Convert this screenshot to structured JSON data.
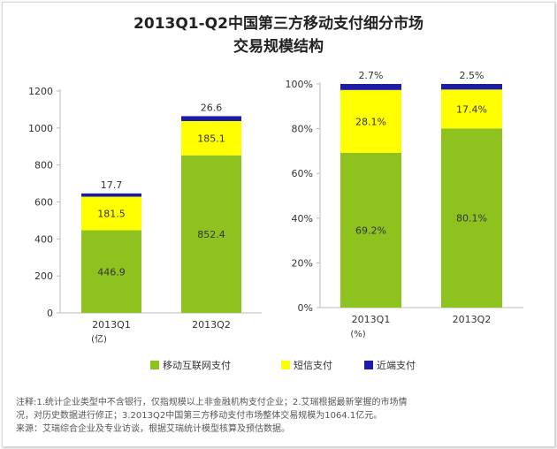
{
  "title_line1": "2013Q1-Q2中国第三方移动支付细分市场",
  "title_line2": "交易规模结构",
  "legend": [
    {
      "name": "移动互联网支付",
      "color": "#8dc21f"
    },
    {
      "name": "短信支付",
      "color": "#ffff00"
    },
    {
      "name": "近端支付",
      "color": "#1c1ca8"
    }
  ],
  "chart_data": [
    {
      "type": "bar",
      "stacked": true,
      "categories": [
        "2013Q1",
        "2013Q2"
      ],
      "series": [
        {
          "name": "移动互联网支付",
          "values": [
            446.9,
            852.4
          ]
        },
        {
          "name": "短信支付",
          "values": [
            181.5,
            185.1
          ]
        },
        {
          "name": "近端支付",
          "values": [
            17.7,
            26.6
          ]
        }
      ],
      "ylim": [
        0,
        1200
      ],
      "yticks": [
        "0",
        "200",
        "400",
        "600",
        "800",
        "1000",
        "1200"
      ],
      "unit_label": "(亿)",
      "value_labels": [
        [
          "446.9",
          "181.5",
          "17.7"
        ],
        [
          "852.4",
          "185.1",
          "26.6"
        ]
      ]
    },
    {
      "type": "bar",
      "stacked": true,
      "percent": true,
      "categories": [
        "2013Q1",
        "2013Q2"
      ],
      "series": [
        {
          "name": "移动互联网支付",
          "values": [
            69.2,
            80.1
          ]
        },
        {
          "name": "短信支付",
          "values": [
            28.1,
            17.4
          ]
        },
        {
          "name": "近端支付",
          "values": [
            2.7,
            2.5
          ]
        }
      ],
      "ylim": [
        0,
        100
      ],
      "yticks": [
        "0%",
        "20%",
        "40%",
        "60%",
        "80%",
        "100%"
      ],
      "unit_label": "(%)",
      "value_labels": [
        [
          "69.2%",
          "28.1%",
          "2.7%"
        ],
        [
          "80.1%",
          "17.4%",
          "2.5%"
        ]
      ]
    }
  ],
  "notes": {
    "line1": "注释:1.统计企业类型中不含银行，仅指规模以上非金融机构支付企业；2.艾瑞根据最新掌握的市场情",
    "line2": "况，对历史数据进行修正；3.2013Q2中国第三方移动支付市场整体交易规模为1064.1亿元。",
    "line3": "来源：艾瑞综合企业及专业访谈，根据艾瑞统计模型核算及预估数据。"
  }
}
